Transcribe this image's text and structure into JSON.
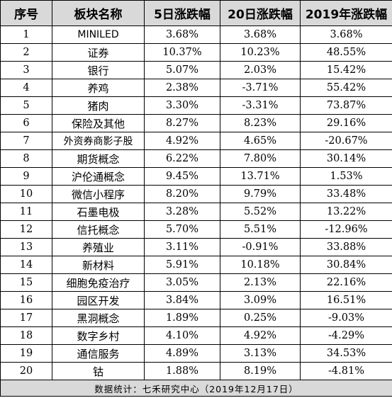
{
  "header": [
    "序号",
    "板块名称",
    "5日涨跌幅",
    "20日涨跌幅",
    "2019年涨跌幅"
  ],
  "rows": [
    [
      "1",
      "MINILED",
      "3.68%",
      "3.68%",
      "3.68%"
    ],
    [
      "2",
      "证券",
      "10.37%",
      "10.23%",
      "48.55%"
    ],
    [
      "3",
      "银行",
      "5.07%",
      "2.03%",
      "15.42%"
    ],
    [
      "4",
      "养鸡",
      "2.38%",
      "-3.71%",
      "55.42%"
    ],
    [
      "5",
      "猪肉",
      "3.30%",
      "-3.31%",
      "73.87%"
    ],
    [
      "6",
      "保险及其他",
      "8.27%",
      "8.23%",
      "29.16%"
    ],
    [
      "7",
      "外资券商影子股",
      "4.92%",
      "4.65%",
      "-20.67%"
    ],
    [
      "8",
      "期货概念",
      "6.22%",
      "7.80%",
      "30.14%"
    ],
    [
      "9",
      "沪伦通概念",
      "9.45%",
      "13.71%",
      "1.53%"
    ],
    [
      "10",
      "微信小程序",
      "8.20%",
      "9.79%",
      "33.48%"
    ],
    [
      "11",
      "石墨电极",
      "3.28%",
      "5.52%",
      "13.22%"
    ],
    [
      "12",
      "信托概念",
      "5.70%",
      "5.51%",
      "-12.96%"
    ],
    [
      "13",
      "养殖业",
      "3.11%",
      "-0.91%",
      "33.88%"
    ],
    [
      "14",
      "新材料",
      "5.91%",
      "10.18%",
      "30.84%"
    ],
    [
      "15",
      "细胞免疫治疗",
      "3.05%",
      "2.13%",
      "22.16%"
    ],
    [
      "16",
      "园区开发",
      "3.84%",
      "3.09%",
      "16.51%"
    ],
    [
      "17",
      "黑洞概念",
      "1.89%",
      "0.25%",
      "-9.03%"
    ],
    [
      "18",
      "数字乡村",
      "4.10%",
      "4.92%",
      "-4.29%"
    ],
    [
      "19",
      "通信服务",
      "4.89%",
      "3.13%",
      "34.53%"
    ],
    [
      "20",
      "钴",
      "1.88%",
      "8.19%",
      "-4.81%"
    ]
  ],
  "footer": "数据统计：七禾研究中心（2019年12月17日）"
}
